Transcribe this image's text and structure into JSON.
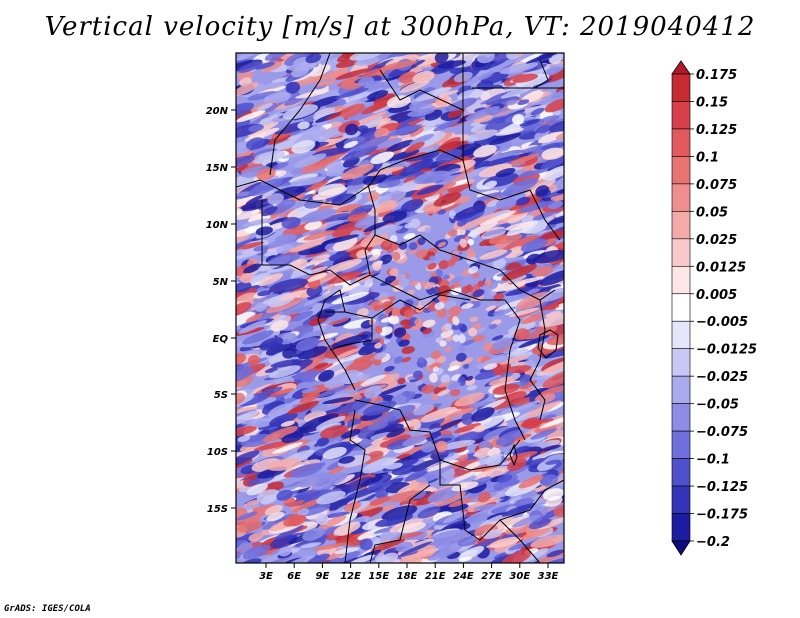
{
  "title": "Vertical velocity [m/s] at 300hPa, VT: 2019040412",
  "footer": "GrADS: IGES/COLA",
  "map": {
    "variable": "Vertical velocity",
    "units": "m/s",
    "level": "300hPa",
    "valid_time": "2019040412",
    "lat_labels": [
      "20N",
      "15N",
      "10N",
      "5N",
      "EQ",
      "5S",
      "10S",
      "15S"
    ],
    "lon_labels": [
      "3E",
      "6E",
      "9E",
      "12E",
      "15E",
      "18E",
      "21E",
      "24E",
      "27E",
      "30E",
      "33E"
    ]
  },
  "colorbar": {
    "labels": [
      "0.175",
      "0.15",
      "0.125",
      "0.1",
      "0.075",
      "0.05",
      "0.025",
      "0.0125",
      "0.005",
      "−0.005",
      "−0.0125",
      "−0.025",
      "−0.05",
      "−0.075",
      "−0.1",
      "−0.125",
      "−0.175",
      "−0.2"
    ],
    "colors": [
      "#b2182b",
      "#c62a33",
      "#d6404a",
      "#e05a5e",
      "#e87373",
      "#ef8e8e",
      "#f5aaaa",
      "#f9c9c9",
      "#fde6e6",
      "#ffffff",
      "#e6e6fb",
      "#c8c8f5",
      "#aaaaee",
      "#8d8de6",
      "#6f6fdc",
      "#5050cc",
      "#3434b8",
      "#1c1ca0",
      "#0c0c80"
    ]
  }
}
